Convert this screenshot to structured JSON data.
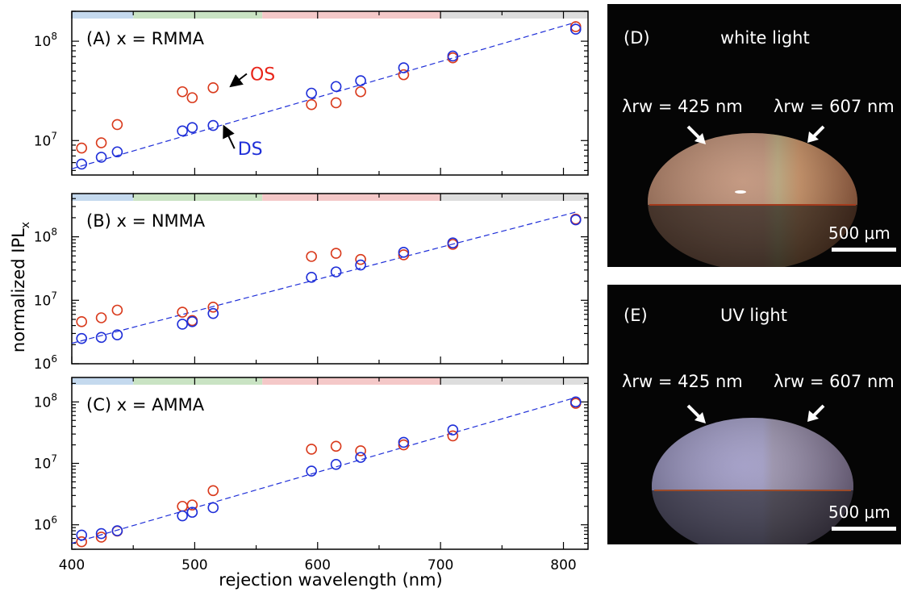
{
  "figure": {
    "ylabel": "normalized IPL",
    "ylabel_sub": "x",
    "xlabel": "rejection wavelength (nm)"
  },
  "chart_data": [
    {
      "type": "scatter",
      "panel": "(A)",
      "label": "x = RMMA",
      "yscale": "log",
      "xlim": [
        400,
        820
      ],
      "ylim": [
        4500000,
        200000000
      ],
      "yticks": [
        "10^7",
        "10^8"
      ],
      "xticks": [],
      "color_bands": [
        {
          "from": 400,
          "to": 450,
          "color": "#c4d9ee"
        },
        {
          "from": 450,
          "to": 555,
          "color": "#c9e3c3"
        },
        {
          "from": 555,
          "to": 700,
          "color": "#f4c8c8"
        },
        {
          "from": 700,
          "to": 820,
          "color": "#dddddd"
        }
      ],
      "annotations": [
        {
          "text": "OS",
          "color": "#e8251a",
          "x": 525,
          "y": 36000000,
          "tx": 545,
          "ty": 47000000
        },
        {
          "text": "DS",
          "color": "#1f2fd8",
          "x": 519,
          "y": 13500000,
          "tx": 535,
          "ty": 8300000
        }
      ],
      "series": [
        {
          "name": "OS",
          "color": "#d93a1c",
          "x": [
            408,
            424,
            437,
            490,
            498,
            515,
            595,
            615,
            635,
            670,
            710,
            810
          ],
          "y": [
            8400000,
            9500000,
            14500000,
            31000000,
            27000000,
            34000000,
            23000000,
            24000000,
            31000000,
            46000000,
            68000000,
            140000000
          ]
        },
        {
          "name": "DS",
          "color": "#1f2fd8",
          "x": [
            408,
            424,
            437,
            490,
            498,
            515,
            595,
            615,
            635,
            670,
            710,
            810
          ],
          "y": [
            5800000,
            6800000,
            7700000,
            12500000,
            13500000,
            14200000,
            30000000,
            35000000,
            40000000,
            54000000,
            71000000,
            132000000
          ]
        },
        {
          "name": "fit",
          "color": "#1f2fd8",
          "dashed": true,
          "x": [
            400,
            810
          ],
          "y": [
            5200000,
            155000000
          ]
        }
      ]
    },
    {
      "type": "scatter",
      "panel": "(B)",
      "label": "x = NMMA",
      "yscale": "log",
      "xlim": [
        400,
        820
      ],
      "ylim": [
        1000000,
        480000000
      ],
      "yticks": [
        "10^6",
        "10^7",
        "10^8"
      ],
      "xticks": [],
      "color_bands": [
        {
          "from": 400,
          "to": 450,
          "color": "#c4d9ee"
        },
        {
          "from": 450,
          "to": 555,
          "color": "#c9e3c3"
        },
        {
          "from": 555,
          "to": 700,
          "color": "#f4c8c8"
        },
        {
          "from": 700,
          "to": 820,
          "color": "#dddddd"
        }
      ],
      "annotations": [],
      "series": [
        {
          "name": "OS",
          "color": "#d93a1c",
          "x": [
            408,
            424,
            437,
            490,
            498,
            515,
            595,
            615,
            635,
            670,
            710,
            810
          ],
          "y": [
            4600000,
            5300000,
            7000000,
            6500000,
            4800000,
            7800000,
            49000000,
            55000000,
            44000000,
            52000000,
            76000000,
            190000000
          ]
        },
        {
          "name": "DS",
          "color": "#1f2fd8",
          "x": [
            408,
            424,
            437,
            490,
            498,
            515,
            595,
            615,
            635,
            670,
            710,
            810
          ],
          "y": [
            2500000,
            2600000,
            2850000,
            4200000,
            4600000,
            6200000,
            23000000,
            28000000,
            36000000,
            57000000,
            80000000,
            185000000
          ]
        },
        {
          "name": "fit",
          "color": "#1f2fd8",
          "dashed": true,
          "x": [
            400,
            810
          ],
          "y": [
            2100000,
            245000000
          ]
        }
      ]
    },
    {
      "type": "scatter",
      "panel": "(C)",
      "label": "x = AMMA",
      "yscale": "log",
      "xlim": [
        400,
        820
      ],
      "ylim": [
        400000,
        250000000
      ],
      "yticks": [
        "10^6",
        "10^7",
        "10^8"
      ],
      "xticks": [
        "400",
        "500",
        "600",
        "700",
        "800"
      ],
      "color_bands": [
        {
          "from": 400,
          "to": 450,
          "color": "#c4d9ee"
        },
        {
          "from": 450,
          "to": 555,
          "color": "#c9e3c3"
        },
        {
          "from": 555,
          "to": 700,
          "color": "#f4c8c8"
        },
        {
          "from": 700,
          "to": 820,
          "color": "#dddddd"
        }
      ],
      "annotations": [],
      "series": [
        {
          "name": "OS",
          "color": "#d93a1c",
          "x": [
            408,
            424,
            437,
            490,
            498,
            515,
            595,
            615,
            635,
            670,
            710,
            810
          ],
          "y": [
            530000,
            630000,
            790000,
            2000000,
            2100000,
            3600000,
            17000000,
            19000000,
            16000000,
            20000000,
            28000000,
            95000000
          ]
        },
        {
          "name": "DS",
          "color": "#1f2fd8",
          "x": [
            408,
            424,
            437,
            490,
            498,
            515,
            595,
            615,
            635,
            670,
            710,
            810
          ],
          "y": [
            680000,
            720000,
            800000,
            1400000,
            1600000,
            1900000,
            7500000,
            9600000,
            12500000,
            22000000,
            35000000,
            100000000
          ]
        },
        {
          "name": "fit",
          "color": "#1f2fd8",
          "dashed": true,
          "x": [
            400,
            810
          ],
          "y": [
            500000,
            118000000
          ]
        }
      ]
    }
  ],
  "photos": [
    {
      "panel": "(D)",
      "title": "white light",
      "left_label": "λrw = 425 nm",
      "right_label": "λrw = 607 nm",
      "scale": "500 μm"
    },
    {
      "panel": "(E)",
      "title": "UV light",
      "left_label": "λrw = 425 nm",
      "right_label": "λrw = 607 nm",
      "scale": "500 μm"
    }
  ]
}
